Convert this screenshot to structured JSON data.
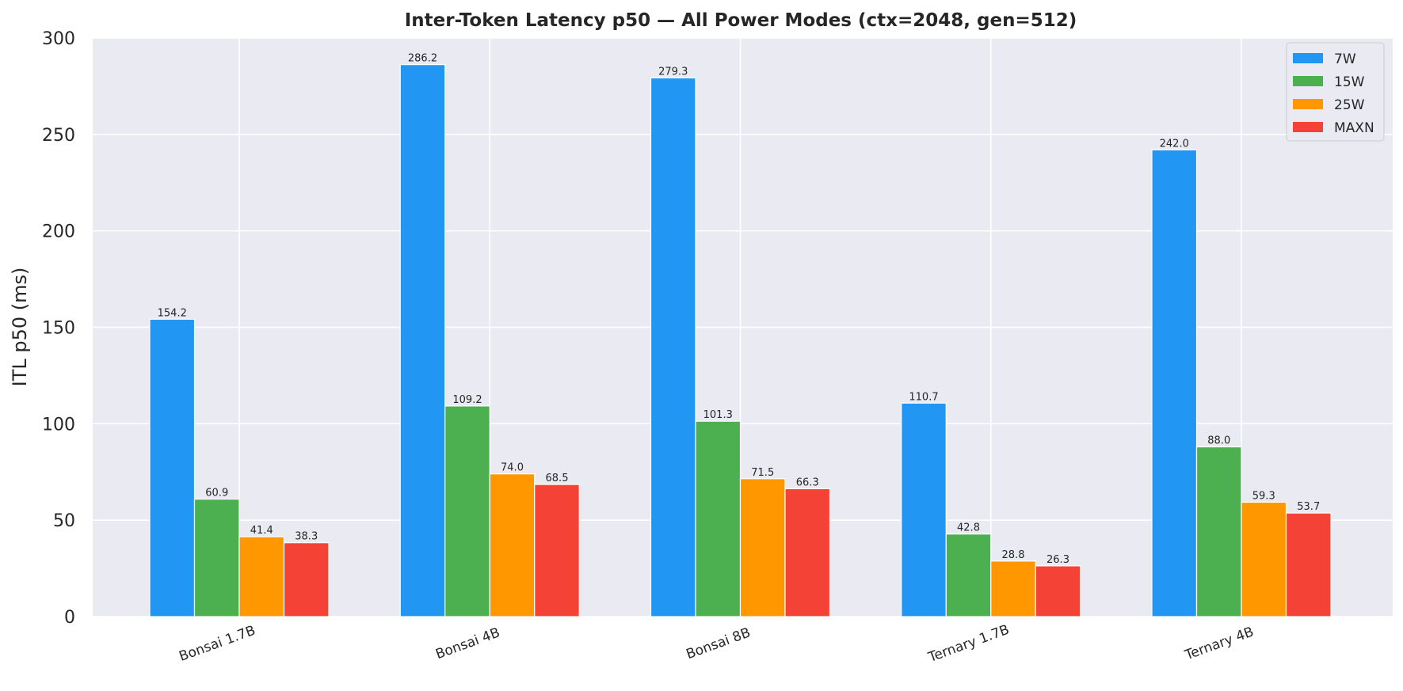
{
  "chart_data": {
    "type": "bar",
    "title": "Inter-Token Latency p50 — All Power Modes (ctx=2048, gen=512)",
    "xlabel": "",
    "ylabel": "ITL p50 (ms)",
    "ylim": [
      0,
      300
    ],
    "yticks": [
      0,
      50,
      100,
      150,
      200,
      250,
      300
    ],
    "categories": [
      "Bonsai 1.7B",
      "Bonsai 4B",
      "Bonsai 8B",
      "Ternary 1.7B",
      "Ternary 4B"
    ],
    "series": [
      {
        "name": "7W",
        "color": "#2196F3",
        "values": [
          154.2,
          286.2,
          279.3,
          110.7,
          242.0
        ]
      },
      {
        "name": "15W",
        "color": "#4CAF50",
        "values": [
          60.9,
          109.2,
          101.3,
          42.8,
          88.0
        ]
      },
      {
        "name": "25W",
        "color": "#FF9800",
        "values": [
          41.4,
          74.0,
          71.5,
          28.8,
          59.3
        ]
      },
      {
        "name": "MAXN",
        "color": "#F44336",
        "values": [
          38.3,
          68.5,
          66.3,
          26.3,
          53.7
        ]
      }
    ],
    "grid": true,
    "legend_position": "top-right",
    "background": "#EAEAF2"
  }
}
